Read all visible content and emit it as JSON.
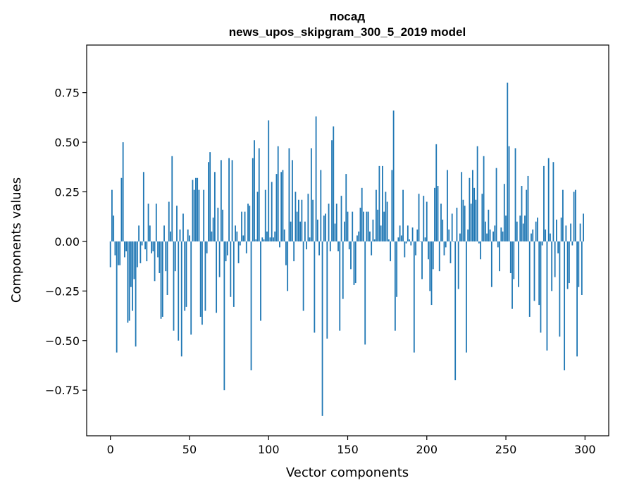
{
  "chart_data": {
    "type": "bar",
    "title_line1": "посад",
    "title_line2": "news_upos_skipgram_300_5_2019 model",
    "xlabel": "Vector components",
    "ylabel": "Components values",
    "xlim": [
      -15,
      315
    ],
    "ylim": [
      -0.98,
      0.99
    ],
    "xticks": [
      0,
      50,
      100,
      150,
      200,
      250,
      300
    ],
    "xtick_labels": [
      "0",
      "50",
      "100",
      "150",
      "200",
      "250",
      "300"
    ],
    "yticks": [
      -0.75,
      -0.5,
      -0.25,
      0.0,
      0.25,
      0.5,
      0.75
    ],
    "ytick_labels": [
      "−0.75",
      "−0.50",
      "−0.25",
      "0.00",
      "0.25",
      "0.50",
      "0.75"
    ],
    "bar_color": "#1f77b4",
    "values": [
      -0.13,
      0.26,
      0.13,
      -0.07,
      -0.56,
      -0.12,
      -0.12,
      0.32,
      0.5,
      -0.08,
      -0.05,
      -0.41,
      -0.4,
      -0.23,
      -0.35,
      -0.19,
      -0.53,
      -0.13,
      0.08,
      -0.11,
      -0.02,
      0.35,
      -0.04,
      -0.1,
      0.19,
      0.08,
      -0.06,
      -0.05,
      -0.2,
      0.19,
      -0.08,
      -0.16,
      -0.39,
      -0.38,
      0.08,
      -0.15,
      -0.27,
      0.2,
      0.05,
      0.43,
      -0.45,
      -0.15,
      0.18,
      -0.5,
      0.06,
      -0.58,
      0.14,
      -0.35,
      -0.33,
      0.06,
      0.03,
      -0.47,
      0.31,
      0.26,
      0.32,
      0.32,
      0.26,
      -0.38,
      -0.42,
      0.26,
      -0.35,
      -0.06,
      0.4,
      0.45,
      0.05,
      0.12,
      0.35,
      -0.36,
      0.17,
      -0.18,
      0.41,
      0.16,
      -0.75,
      -0.1,
      -0.07,
      0.42,
      -0.28,
      0.41,
      -0.33,
      0.08,
      0.05,
      -0.11,
      -0.02,
      0.15,
      0.03,
      0.15,
      -0.06,
      0.19,
      0.18,
      -0.65,
      0.42,
      0.51,
      0.01,
      0.25,
      0.47,
      -0.4,
      0.02,
      0.01,
      0.26,
      0.05,
      0.61,
      0.02,
      0.3,
      0.02,
      0.05,
      0.34,
      0.48,
      -0.03,
      0.35,
      0.36,
      0.06,
      -0.12,
      -0.25,
      0.47,
      0.1,
      0.41,
      -0.1,
      0.25,
      0.15,
      0.21,
      0.1,
      0.21,
      -0.35,
      0.1,
      -0.04,
      0.24,
      0.02,
      0.47,
      0.21,
      -0.46,
      0.63,
      0.11,
      -0.07,
      0.36,
      -0.88,
      0.13,
      0.14,
      -0.49,
      0.19,
      -0.05,
      0.51,
      0.58,
      0.09,
      0.19,
      -0.05,
      -0.45,
      0.23,
      -0.29,
      0.1,
      0.34,
      0.15,
      -0.04,
      -0.14,
      0.15,
      -0.22,
      -0.21,
      0.03,
      0.05,
      0.17,
      0.27,
      0.15,
      -0.52,
      0.15,
      0.15,
      0.05,
      -0.07,
      0.11,
      0.01,
      0.26,
      0.16,
      0.38,
      0.08,
      0.38,
      0.15,
      0.25,
      0.2,
      0.01,
      -0.1,
      0.36,
      0.66,
      -0.45,
      -0.28,
      0.02,
      0.08,
      0.03,
      0.26,
      -0.08,
      -0.01,
      0.08,
      0.01,
      -0.02,
      0.07,
      -0.56,
      -0.07,
      0.06,
      0.24,
      0.0,
      -0.19,
      0.23,
      0.02,
      0.2,
      -0.09,
      -0.25,
      -0.32,
      -0.14,
      0.27,
      0.49,
      0.28,
      -0.15,
      0.19,
      0.11,
      -0.07,
      -0.03,
      0.36,
      0.06,
      -0.11,
      0.14,
      0.0,
      -0.7,
      0.17,
      -0.24,
      0.04,
      0.35,
      0.21,
      0.18,
      -0.56,
      0.06,
      0.32,
      0.19,
      0.36,
      0.27,
      0.21,
      0.48,
      -0.01,
      -0.09,
      0.24,
      0.43,
      0.1,
      0.04,
      0.16,
      0.06,
      -0.23,
      0.05,
      0.08,
      0.37,
      -0.03,
      -0.15,
      0.07,
      0.05,
      0.29,
      0.13,
      0.8,
      0.48,
      -0.16,
      -0.34,
      -0.19,
      0.47,
      0.1,
      -0.23,
      0.13,
      0.28,
      0.09,
      0.13,
      0.26,
      0.33,
      -0.38,
      0.04,
      0.06,
      -0.3,
      0.1,
      0.12,
      -0.32,
      -0.46,
      -0.02,
      0.38,
      0.06,
      -0.55,
      0.42,
      0.04,
      -0.25,
      0.4,
      -0.18,
      0.11,
      -0.06,
      -0.48,
      0.12,
      0.26,
      -0.65,
      0.08,
      -0.24,
      -0.21,
      0.09,
      -0.02,
      0.25,
      0.26,
      -0.58,
      -0.23,
      0.09,
      -0.27,
      0.14
    ]
  }
}
